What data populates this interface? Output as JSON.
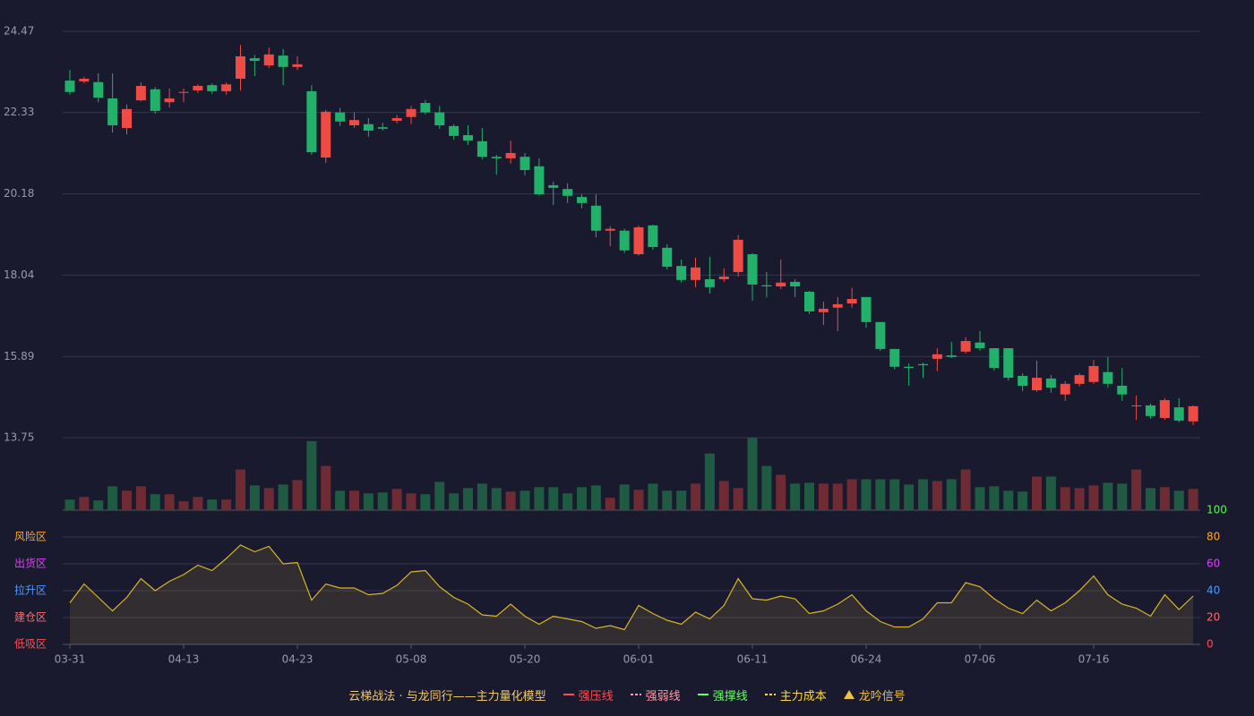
{
  "chart_data": [
    {
      "type": "candlestick",
      "categories": [
        "03-31",
        null,
        null,
        null,
        null,
        null,
        null,
        null,
        "04-13",
        null,
        null,
        null,
        null,
        null,
        null,
        null,
        "04-23",
        null,
        null,
        null,
        null,
        null,
        null,
        null,
        "05-08",
        null,
        null,
        null,
        null,
        null,
        null,
        null,
        "05-20",
        null,
        null,
        null,
        null,
        null,
        null,
        null,
        "06-01",
        null,
        null,
        null,
        null,
        null,
        null,
        null,
        "06-11",
        null,
        null,
        null,
        null,
        null,
        null,
        null,
        "06-24",
        null,
        null,
        null,
        null,
        null,
        null,
        null,
        "07-06",
        null,
        null,
        null,
        null,
        null,
        null,
        null,
        "07-16",
        null,
        null,
        null,
        null,
        null,
        null,
        null
      ],
      "open": [
        23.17,
        23.15,
        23.13,
        22.7,
        21.92,
        22.65,
        22.94,
        22.6,
        22.86,
        22.91,
        23.05,
        22.89,
        23.22,
        23.76,
        23.57,
        23.83,
        23.53,
        22.89,
        21.14,
        22.33,
        21.99,
        22.02,
        21.94,
        22.11,
        22.21,
        22.58,
        22.33,
        21.97,
        21.73,
        21.57,
        21.16,
        21.12,
        21.16,
        20.91,
        20.41,
        20.31,
        20.1,
        19.87,
        19.21,
        19.21,
        18.59,
        19.35,
        18.76,
        18.28,
        17.91,
        17.93,
        17.93,
        18.12,
        18.59,
        17.77,
        17.74,
        17.86,
        17.6,
        17.06,
        17.18,
        17.29,
        17.46,
        16.8,
        16.09,
        15.62,
        15.69,
        15.83,
        15.92,
        16.02,
        16.26,
        16.11,
        16.11,
        15.38,
        15.0,
        15.31,
        14.89,
        15.17,
        15.22,
        15.48,
        15.12,
        14.58,
        14.6,
        14.27,
        14.55,
        14.18
      ],
      "close": [
        22.87,
        23.22,
        22.72,
        21.99,
        22.42,
        23.03,
        22.37,
        22.7,
        22.87,
        23.03,
        22.89,
        23.07,
        23.81,
        23.69,
        23.86,
        23.53,
        23.6,
        21.28,
        22.35,
        22.09,
        22.13,
        21.85,
        21.9,
        22.18,
        22.42,
        22.33,
        21.99,
        21.71,
        21.59,
        21.16,
        21.12,
        21.26,
        20.81,
        20.17,
        20.34,
        20.13,
        19.94,
        19.21,
        19.26,
        18.69,
        19.3,
        18.78,
        18.26,
        17.91,
        18.24,
        17.72,
        18.0,
        18.97,
        17.79,
        17.74,
        17.84,
        17.74,
        17.08,
        17.15,
        17.27,
        17.41,
        16.8,
        16.09,
        15.62,
        15.59,
        15.66,
        15.95,
        15.88,
        16.3,
        16.11,
        15.59,
        15.33,
        15.12,
        15.33,
        15.07,
        15.17,
        15.4,
        15.64,
        15.17,
        14.89,
        14.6,
        14.32,
        14.74,
        14.2,
        14.58
      ],
      "high": [
        23.45,
        23.27,
        23.36,
        23.36,
        22.54,
        23.12,
        23.0,
        22.96,
        22.96,
        23.07,
        23.1,
        23.12,
        24.11,
        23.85,
        24.04,
        24.0,
        23.81,
        23.05,
        22.4,
        22.45,
        22.33,
        22.18,
        22.06,
        22.26,
        22.5,
        22.66,
        22.5,
        22.02,
        21.99,
        21.92,
        21.21,
        21.59,
        21.26,
        21.12,
        20.5,
        20.46,
        20.17,
        20.17,
        19.33,
        19.26,
        19.35,
        19.37,
        18.85,
        18.45,
        18.5,
        18.52,
        18.21,
        19.09,
        18.62,
        18.12,
        18.45,
        17.93,
        17.62,
        17.34,
        17.46,
        17.7,
        17.46,
        16.8,
        16.09,
        15.71,
        15.73,
        16.11,
        16.28,
        16.4,
        16.56,
        16.11,
        16.11,
        15.45,
        15.78,
        15.4,
        15.24,
        15.45,
        15.8,
        15.88,
        15.59,
        14.86,
        14.65,
        14.79,
        14.79,
        14.6
      ],
      "low": [
        22.8,
        23.1,
        22.6,
        21.8,
        21.75,
        22.62,
        22.3,
        22.46,
        22.6,
        22.84,
        22.82,
        22.8,
        22.91,
        23.29,
        23.5,
        23.05,
        23.45,
        21.21,
        21.0,
        21.97,
        21.92,
        21.69,
        21.85,
        22.04,
        22.02,
        22.28,
        21.9,
        21.61,
        21.47,
        21.09,
        20.69,
        20.98,
        20.67,
        20.13,
        19.89,
        19.94,
        19.8,
        19.04,
        18.8,
        18.62,
        18.55,
        18.71,
        18.19,
        17.84,
        17.72,
        17.55,
        17.86,
        18.0,
        17.37,
        17.45,
        17.67,
        17.46,
        17.01,
        16.72,
        16.56,
        17.18,
        16.65,
        16.04,
        15.55,
        15.12,
        15.33,
        15.5,
        15.85,
        15.97,
        16.04,
        15.52,
        15.26,
        14.98,
        14.96,
        14.93,
        14.72,
        15.1,
        15.17,
        15.07,
        14.72,
        14.22,
        14.25,
        14.22,
        14.15,
        14.08
      ],
      "up_color": "#ef4b45",
      "down_color": "#22b06a",
      "ylim": [
        13.75,
        24.47
      ],
      "yticks": [
        24.47,
        22.33,
        20.18,
        18.04,
        15.89,
        13.75
      ],
      "grid": true
    },
    {
      "type": "bar",
      "values": [
        12,
        15,
        11,
        27,
        22,
        27,
        18,
        18,
        10,
        15,
        12,
        12,
        46,
        28,
        25,
        29,
        34,
        78,
        50,
        22,
        22,
        19,
        20,
        24,
        19,
        18,
        32,
        19,
        25,
        30,
        25,
        21,
        22,
        26,
        26,
        19,
        26,
        28,
        14,
        29,
        23,
        30,
        22,
        22,
        30,
        64,
        33,
        25,
        82,
        50,
        40,
        30,
        31,
        30,
        30,
        35,
        35,
        35,
        35,
        29,
        35,
        33,
        35,
        46,
        26,
        27,
        22,
        21,
        38,
        38,
        26,
        25,
        28,
        31,
        30,
        46,
        25,
        26,
        22,
        24
      ],
      "up_color": "#6e2b33",
      "down_color": "#1f5a43"
    },
    {
      "type": "area",
      "values": [
        31,
        45,
        35,
        25,
        35,
        49,
        40,
        47,
        52,
        59,
        55,
        64,
        74,
        69,
        73,
        60,
        61,
        33,
        45,
        42,
        42,
        37,
        38,
        44,
        54,
        55,
        43,
        35,
        30,
        22,
        21,
        30,
        21,
        15,
        21,
        19,
        17,
        12,
        14,
        11,
        29,
        23,
        18,
        15,
        24,
        19,
        29,
        49,
        34,
        33,
        36,
        34,
        23,
        25,
        30,
        37,
        25,
        17,
        13,
        13,
        19,
        31,
        31,
        46,
        43,
        34,
        27,
        23,
        33,
        25,
        31,
        40,
        51,
        37,
        30,
        27,
        21,
        37,
        26,
        36
      ],
      "color": "#d9b526",
      "fill": "rgba(140,115,60,0.22)",
      "ylim": [
        0,
        100
      ],
      "yticks": [
        0,
        20,
        40,
        60,
        80,
        100
      ],
      "ytick_colors": [
        "#ff4d4d",
        "#ff6b6b",
        "#4d9bff",
        "#e040fb",
        "#ffa726",
        "#4dff4d"
      ],
      "zones": [
        {
          "label": "风险区",
          "level": 80,
          "color": "#ffa726"
        },
        {
          "label": "出货区",
          "level": 60,
          "color": "#e040fb"
        },
        {
          "label": "拉升区",
          "level": 40,
          "color": "#4d9bff"
        },
        {
          "label": "建仓区",
          "level": 20,
          "color": "#ff6b6b"
        },
        {
          "label": "低吸区",
          "level": 0,
          "color": "#ff4d4d"
        }
      ]
    }
  ],
  "legend": {
    "title": "云梯战法 · 与龙同行——主力量化模型",
    "title_color": "#f0c96a",
    "items": [
      {
        "name": "强压线",
        "color": "#ff4d4d",
        "style": "solid"
      },
      {
        "name": "强弱线",
        "color": "#ff9aa2",
        "style": "dashed"
      },
      {
        "name": "强撑线",
        "color": "#66ff66",
        "style": "solid"
      },
      {
        "name": "主力成本",
        "color": "#ffd93d",
        "style": "dashed"
      },
      {
        "name": "龙吟信号",
        "color": "#f0c040",
        "style": "triangle"
      }
    ]
  }
}
